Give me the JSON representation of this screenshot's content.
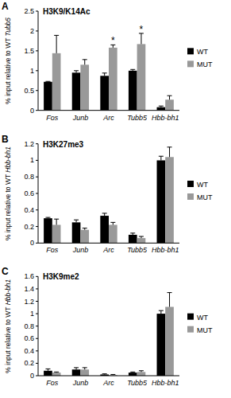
{
  "chart_data": [
    {
      "type": "bar",
      "label": "A",
      "title": "H3K9/K14Ac",
      "y_label": "% input relative to WT Tubb5",
      "categories": [
        "Fos",
        "Junb",
        "Arc",
        "Tubb5",
        "Hbb-bh1"
      ],
      "series": [
        {
          "name": "WT",
          "color": "#000000",
          "values": [
            0.72,
            0.95,
            0.87,
            1.0,
            0.08
          ],
          "errors": [
            0.01,
            0.05,
            0.07,
            0.03,
            0.03
          ]
        },
        {
          "name": "MUT",
          "color": "#999999",
          "values": [
            1.44,
            1.15,
            1.58,
            1.67,
            0.27
          ],
          "errors": [
            0.45,
            0.13,
            0.07,
            0.27,
            0.1
          ]
        }
      ],
      "ylim": [
        0,
        2.5
      ],
      "yticks": [
        0,
        0.5,
        1,
        1.5,
        2,
        2.5
      ],
      "legend": "right",
      "annotations": [
        {
          "text": "*",
          "category": "Arc"
        },
        {
          "text": "*",
          "category": "Tubb5"
        }
      ]
    },
    {
      "type": "bar",
      "label": "B",
      "title": "H3K27me3",
      "y_label": "% input relative to WT Hbb-bh1",
      "categories": [
        "Fos",
        "Junb",
        "Arc",
        "Tubb5",
        "Hbb-bh1"
      ],
      "series": [
        {
          "name": "WT",
          "color": "#000000",
          "values": [
            0.3,
            0.25,
            0.33,
            0.1,
            1.0
          ],
          "errors": [
            0.01,
            0.03,
            0.03,
            0.02,
            0.05
          ]
        },
        {
          "name": "MUT",
          "color": "#999999",
          "values": [
            0.22,
            0.16,
            0.22,
            0.06,
            1.04
          ],
          "errors": [
            0.07,
            0.02,
            0.03,
            0.02,
            0.12
          ]
        }
      ],
      "ylim": [
        0,
        1.2
      ],
      "yticks": [
        0,
        0.2,
        0.4,
        0.6,
        0.8,
        1,
        1.2
      ],
      "legend": "right"
    },
    {
      "type": "bar",
      "label": "C",
      "title": "H3K9me2",
      "y_label": "% input relative to WT Hbb-bh1",
      "categories": [
        "Fos",
        "Junb",
        "Arc",
        "Tubb5",
        "Hbb-bh1"
      ],
      "series": [
        {
          "name": "WT",
          "color": "#000000",
          "values": [
            0.08,
            0.1,
            0.02,
            0.05,
            1.0
          ],
          "errors": [
            0.03,
            0.03,
            0.01,
            0.01,
            0.05
          ]
        },
        {
          "name": "MUT",
          "color": "#999999",
          "values": [
            0.05,
            0.1,
            0.01,
            0.06,
            1.11
          ],
          "errors": [
            0.01,
            0.03,
            0.01,
            0.02,
            0.23
          ]
        }
      ],
      "ylim": [
        0,
        1.6
      ],
      "yticks": [
        0,
        0.2,
        0.4,
        0.6,
        0.8,
        1,
        1.2,
        1.4,
        1.6
      ],
      "legend": "right"
    }
  ]
}
